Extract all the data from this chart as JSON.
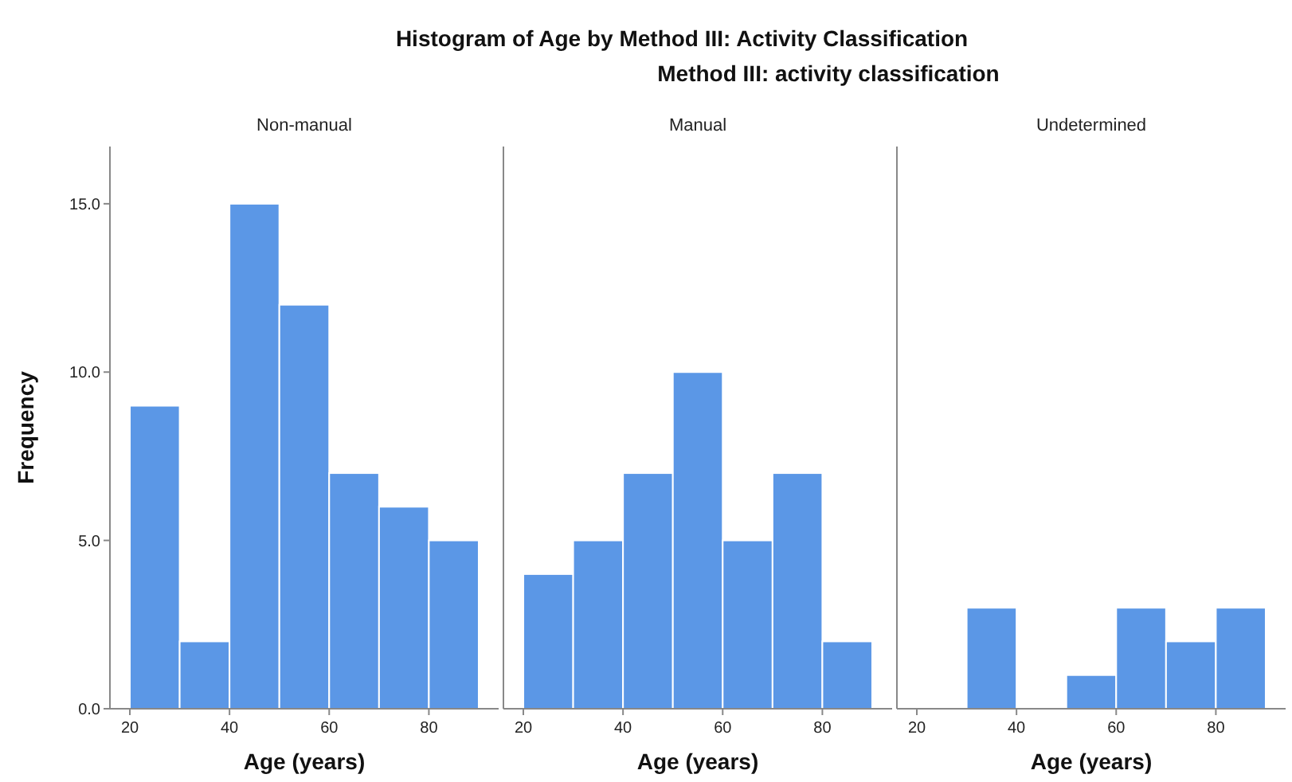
{
  "chart_data": [
    {
      "type": "histogram",
      "title": "Non-manual",
      "annotations": [
        "Histogram of Age by Method III: Activity Classification",
        "Method III: activity classification"
      ],
      "xlabel": "Age (years)",
      "ylabel": "Frequency",
      "bins": [
        20,
        30,
        40,
        50,
        60,
        70,
        80,
        90
      ],
      "values": [
        9,
        2,
        15,
        12,
        7,
        6,
        5
      ],
      "color": "#5b97e6",
      "xlim": [
        16,
        94
      ],
      "xticks": [
        20,
        40,
        60,
        80
      ],
      "ylim": [
        0,
        16.7
      ],
      "yticks": [
        {
          "value": 0,
          "label": "0.0"
        },
        {
          "value": 5,
          "label": "5.0"
        },
        {
          "value": 10,
          "label": "10.0"
        },
        {
          "value": 15,
          "label": "15.0"
        }
      ]
    },
    {
      "type": "histogram",
      "title": "Manual",
      "xlabel": "Age (years)",
      "bins": [
        20,
        30,
        40,
        50,
        60,
        70,
        80,
        90
      ],
      "values": [
        4,
        5,
        7,
        10,
        5,
        7,
        2
      ],
      "color": "#5b97e6",
      "xlim": [
        16,
        94
      ],
      "xticks": [
        20,
        40,
        60,
        80
      ],
      "ylim": [
        0,
        16.7
      ],
      "tick_labels": "x"
    },
    {
      "type": "histogram",
      "title": "Undetermined",
      "xlabel": "Age (years)",
      "bins": [
        20,
        30,
        40,
        50,
        60,
        70,
        80,
        90
      ],
      "values": [
        0,
        3,
        0,
        1,
        3,
        2,
        3
      ],
      "color": "#5b97e6",
      "xlim": [
        16,
        94
      ],
      "xticks": [
        20,
        40,
        60,
        80
      ],
      "ylim": [
        0,
        16.7
      ],
      "tick_labels": "x"
    }
  ]
}
